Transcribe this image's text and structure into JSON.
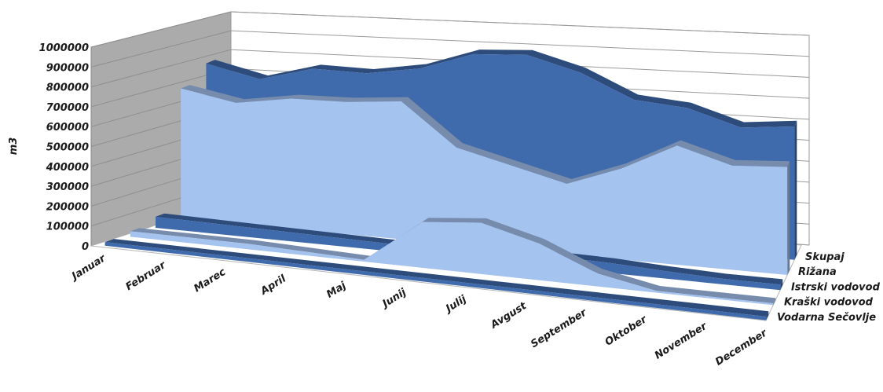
{
  "chart_data": {
    "type": "area",
    "subtype": "3d-area",
    "title": "",
    "ylabel": "m3",
    "ylim": [
      0,
      1000000
    ],
    "yticks": [
      "0",
      "100000",
      "200000",
      "300000",
      "400000",
      "500000",
      "600000",
      "700000",
      "800000",
      "900000",
      "1000000"
    ],
    "categories": [
      "Januar",
      "Februar",
      "Marec",
      "April",
      "Maj",
      "Junij",
      "Julij",
      "Avgust",
      "September",
      "Oktober",
      "November",
      "December"
    ],
    "grid": true,
    "series": [
      {
        "name": "Skupaj",
        "color": "#3f6aab",
        "values": [
          780000,
          720000,
          800000,
          800000,
          850000,
          950000,
          970000,
          900000,
          780000,
          760000,
          680000,
          710000
        ]
      },
      {
        "name": "Rižana",
        "color": "#a5c3ef",
        "values": [
          700000,
          650000,
          700000,
          710000,
          740000,
          520000,
          450000,
          380000,
          490000,
          640000,
          560000,
          580000
        ]
      },
      {
        "name": "Istrski vodovod",
        "color": "#3f6aab",
        "values": [
          60000,
          55000,
          50000,
          45000,
          40000,
          40000,
          50000,
          60000,
          55000,
          40000,
          30000,
          30000
        ]
      },
      {
        "name": "Kraški vodovod",
        "color": "#a5c3ef",
        "values": [
          30000,
          30000,
          30000,
          20000,
          10000,
          250000,
          280000,
          200000,
          70000,
          10000,
          10000,
          10000
        ]
      },
      {
        "name": "Vodarna Sečovlje",
        "color": "#3f6aab",
        "values": [
          20000,
          20000,
          20000,
          20000,
          20000,
          20000,
          20000,
          20000,
          20000,
          20000,
          20000,
          20000
        ]
      }
    ]
  }
}
